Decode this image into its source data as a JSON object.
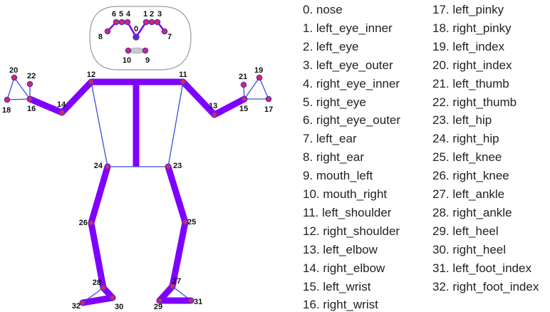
{
  "colors": {
    "limb": "#7f00ff",
    "connector": "#3b4fd8",
    "joint_fill": "#e0245e",
    "joint_stroke": "#5a2ec2",
    "head_outline": "#9a9a9a",
    "label_text": "#222222"
  },
  "skeleton": {
    "landmark_ids": [
      "0",
      "1",
      "2",
      "3",
      "4",
      "5",
      "6",
      "7",
      "8",
      "9",
      "10",
      "11",
      "12",
      "13",
      "14",
      "15",
      "16",
      "17",
      "18",
      "19",
      "20",
      "21",
      "22",
      "23",
      "24",
      "25",
      "26",
      "27",
      "28",
      "29",
      "30",
      "31",
      "32"
    ]
  },
  "legend": {
    "items": [
      "0. nose",
      "1. left_eye_inner",
      "2. left_eye",
      "3. left_eye_outer",
      "4. right_eye_inner",
      "5. right_eye",
      "6. right_eye_outer",
      "7. left_ear",
      "8. right_ear",
      "9. mouth_left",
      "10. mouth_right",
      "11. left_shoulder",
      "12. right_shoulder",
      "13. left_elbow",
      "14. right_elbow",
      "15. left_wrist",
      "16. right_wrist",
      "17. left_pinky",
      "18. right_pinky",
      "19. left_index",
      "20. right_index",
      "21. left_thumb",
      "22. right_thumb",
      "23. left_hip",
      "24. right_hip",
      "25. left_knee",
      "26. right_knee",
      "27. left_ankle",
      "28. right_ankle",
      "29. left_heel",
      "30. right_heel",
      "31. left_foot_index",
      "32. right_foot_index"
    ]
  }
}
